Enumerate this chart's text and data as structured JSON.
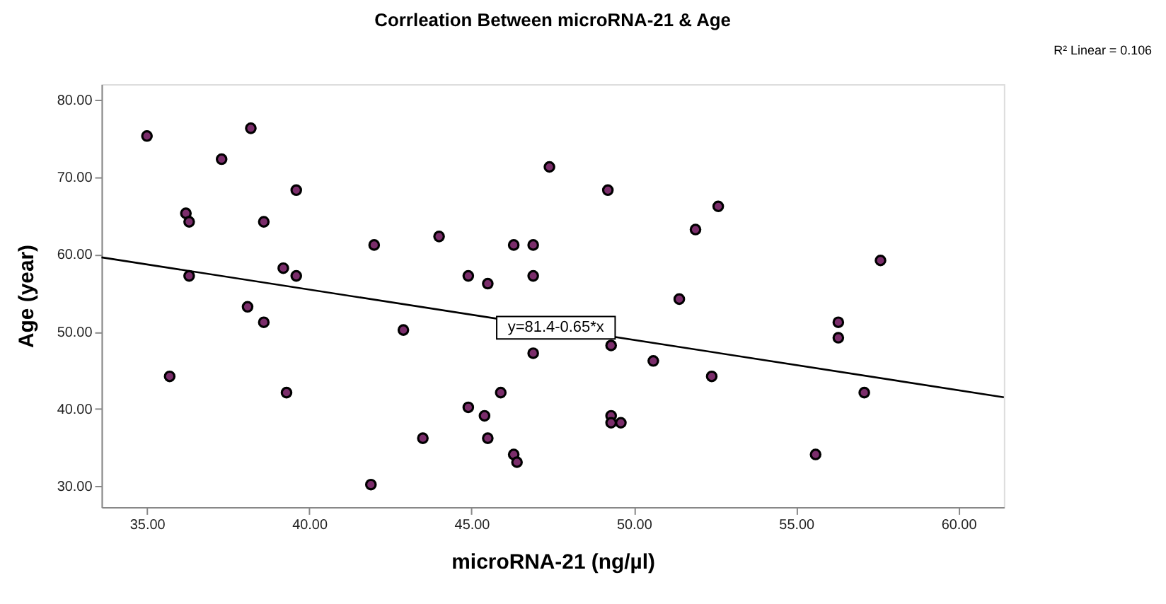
{
  "chart_data": {
    "type": "scatter",
    "title": "Corrleation Between microRNA-21 & Age",
    "xlabel": "microRNA-21 (ng/µl)",
    "ylabel": "Age (year)",
    "xlim": [
      33.6,
      61.4
    ],
    "ylim": [
      27.3,
      82
    ],
    "xticks": [
      {
        "value": 35,
        "label": "35.00"
      },
      {
        "value": 40,
        "label": "40.00"
      },
      {
        "value": 45,
        "label": "45.00"
      },
      {
        "value": 50,
        "label": "50.00"
      },
      {
        "value": 55,
        "label": "55.00"
      },
      {
        "value": 60,
        "label": "60.00"
      }
    ],
    "yticks": [
      {
        "value": 30,
        "label": "30.00"
      },
      {
        "value": 40,
        "label": "40.00"
      },
      {
        "value": 50,
        "label": "50.00"
      },
      {
        "value": 60,
        "label": "60.00"
      },
      {
        "value": 70,
        "label": "70.00"
      },
      {
        "value": 80,
        "label": "80.00"
      }
    ],
    "grid": false,
    "series": [
      {
        "marker": "circle",
        "color": "#7b2d6b",
        "x": [
          35.0,
          38.2,
          37.3,
          39.6,
          36.2,
          36.3,
          38.6,
          42.0,
          44.0,
          46.3,
          46.9,
          47.4,
          36.3,
          39.2,
          39.6,
          44.9,
          45.5,
          46.9,
          38.1,
          38.6,
          42.9,
          46.9,
          35.7,
          39.3,
          45.9,
          44.9,
          45.4,
          43.5,
          45.5,
          46.3,
          46.4,
          41.9,
          49.2,
          52.6,
          51.9,
          57.6,
          51.4,
          56.3,
          56.3,
          49.3,
          50.6,
          52.4,
          57.1,
          49.3,
          49.3,
          49.6,
          55.6
        ],
        "values": [
          75.3,
          76.3,
          72.3,
          68.3,
          65.3,
          64.2,
          64.2,
          61.2,
          62.3,
          61.2,
          61.2,
          71.3,
          57.2,
          58.2,
          57.2,
          57.2,
          56.2,
          57.2,
          53.2,
          51.2,
          50.2,
          47.2,
          44.2,
          42.1,
          42.1,
          40.2,
          39.1,
          36.2,
          36.2,
          34.1,
          33.1,
          30.2,
          68.3,
          66.2,
          63.2,
          59.2,
          54.2,
          51.2,
          49.2,
          48.2,
          46.2,
          44.2,
          42.1,
          39.1,
          38.2,
          38.2,
          34.1
        ]
      },
      {
        "type": "line",
        "color": "#000000",
        "x": [
          33.6,
          61.4
        ],
        "values": [
          59.6,
          41.5
        ]
      }
    ],
    "annotations": [
      {
        "text": "y=81.4-0.65*x",
        "x": 47.6,
        "y": 50.5
      },
      "R² Linear = 0.106"
    ]
  }
}
